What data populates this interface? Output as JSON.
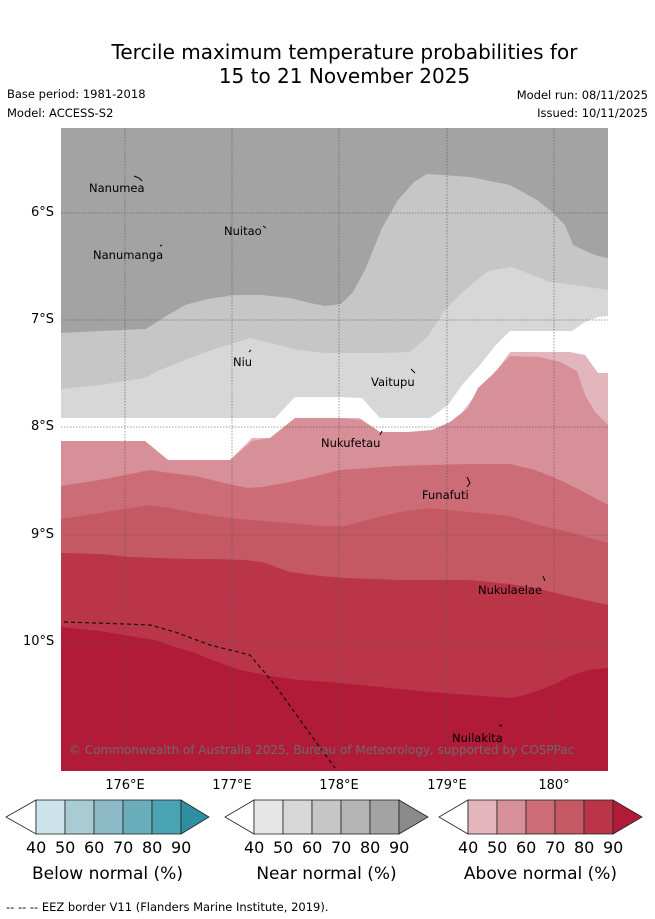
{
  "header": {
    "title_line1": "Tercile maximum temperature probabilities for",
    "title_line2": "15 to 21 November 2025",
    "base_period": "Base period: 1981-2018",
    "model": "Model: ACCESS-S2",
    "model_run": "Model run: 08/11/2025",
    "issued": "Issued: 10/11/2025"
  },
  "map": {
    "lat_labels": [
      "6°S",
      "7°S",
      "8°S",
      "9°S",
      "10°S"
    ],
    "lon_labels": [
      "176°E",
      "177°E",
      "178°E",
      "179°E",
      "180°"
    ],
    "places": [
      "Nanumea",
      "Nuitao",
      "Nanumanga",
      "Niu",
      "Vaitupu",
      "Nukufetau",
      "Funafuti",
      "Nukulaelae",
      "Nuilakita"
    ],
    "credit": "© Commonwealth of Australia 2025, Bureau of Meteorology, supported by COSPPac"
  },
  "colorbars": [
    {
      "label": "Below normal (%)",
      "ticks": [
        "40",
        "50",
        "60",
        "70",
        "80",
        "90"
      ],
      "colors": [
        "#ffffff",
        "#cce3ea",
        "#a9cbd3",
        "#8bb9c6",
        "#6aaebb",
        "#4aa3b2",
        "#2e8fa3"
      ]
    },
    {
      "label": "Near normal (%)",
      "ticks": [
        "40",
        "50",
        "60",
        "70",
        "80",
        "90"
      ],
      "colors": [
        "#ffffff",
        "#e6e6e6",
        "#d7d7d7",
        "#c6c6c6",
        "#b4b4b4",
        "#a3a3a3",
        "#8a8a8a"
      ]
    },
    {
      "label": "Above normal (%)",
      "ticks": [
        "40",
        "50",
        "60",
        "70",
        "80",
        "90"
      ],
      "colors": [
        "#ffffff",
        "#e3b6bd",
        "#d78f98",
        "#cc6c76",
        "#c45963",
        "#bb3549",
        "#b11b37"
      ]
    }
  ],
  "footer": "--  --  -- EEZ border V11 (Flanders Marine Institute, 2019)."
}
